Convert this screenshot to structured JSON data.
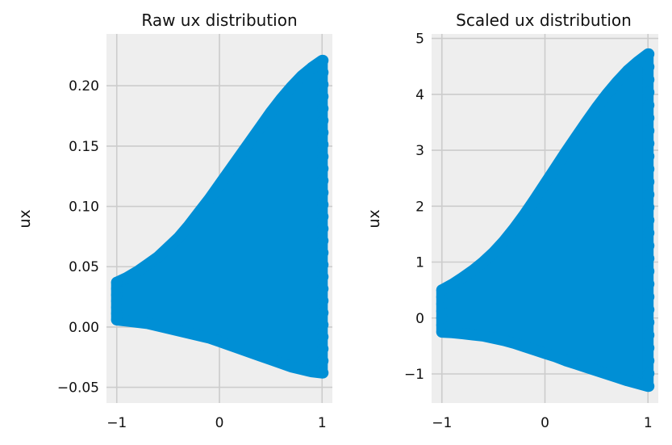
{
  "colors": {
    "background": "#eeeeee",
    "grid": "#cccccc",
    "marker": "#008fd5"
  },
  "chart_data": [
    {
      "type": "scatter",
      "title": "Raw ux distribution",
      "xlabel": "",
      "ylabel": "ux",
      "xlim": [
        -1.1,
        1.1
      ],
      "ylim": [
        -0.063,
        0.243
      ],
      "xticks": [
        -1,
        0,
        1
      ],
      "xtick_labels": [
        "−1",
        "0",
        "1"
      ],
      "yticks": [
        -0.05,
        0.0,
        0.05,
        0.1,
        0.15,
        0.2
      ],
      "ytick_labels": [
        "−0.05",
        "0.00",
        "0.05",
        "0.10",
        "0.15",
        "0.20"
      ],
      "grid": true,
      "legend": "none",
      "x": [
        -1.0,
        -0.9,
        -0.8,
        -0.7,
        -0.6,
        -0.5,
        -0.4,
        -0.3,
        -0.2,
        -0.1,
        0.0,
        0.1,
        0.2,
        0.3,
        0.4,
        0.5,
        0.6,
        0.7,
        0.8,
        0.9,
        1.0
      ],
      "upper": [
        0.037,
        0.041,
        0.046,
        0.052,
        0.058,
        0.066,
        0.074,
        0.084,
        0.095,
        0.106,
        0.118,
        0.13,
        0.142,
        0.154,
        0.166,
        0.178,
        0.189,
        0.199,
        0.208,
        0.215,
        0.221
      ],
      "lower": [
        0.006,
        0.005,
        0.004,
        0.003,
        0.001,
        -0.001,
        -0.003,
        -0.005,
        -0.007,
        -0.009,
        -0.012,
        -0.015,
        -0.018,
        -0.021,
        -0.024,
        -0.027,
        -0.03,
        -0.033,
        -0.035,
        -0.037,
        -0.038
      ]
    },
    {
      "type": "scatter",
      "title": "Scaled ux distribution",
      "xlabel": "",
      "ylabel": "ux",
      "xlim": [
        -1.1,
        1.1
      ],
      "ylim": [
        -1.52,
        5.08
      ],
      "xticks": [
        -1,
        0,
        1
      ],
      "xtick_labels": [
        "−1",
        "0",
        "1"
      ],
      "yticks": [
        -1,
        0,
        1,
        2,
        3,
        4,
        5
      ],
      "ytick_labels": [
        "−1",
        "0",
        "1",
        "2",
        "3",
        "4",
        "5"
      ],
      "grid": true,
      "legend": "none",
      "x": [
        -1.0,
        -0.9,
        -0.8,
        -0.7,
        -0.6,
        -0.5,
        -0.4,
        -0.3,
        -0.2,
        -0.1,
        0.0,
        0.1,
        0.2,
        0.3,
        0.4,
        0.5,
        0.6,
        0.7,
        0.8,
        0.9,
        1.0
      ],
      "upper": [
        0.5,
        0.6,
        0.72,
        0.85,
        1.0,
        1.17,
        1.37,
        1.6,
        1.85,
        2.12,
        2.4,
        2.68,
        2.96,
        3.23,
        3.5,
        3.76,
        4.0,
        4.22,
        4.42,
        4.58,
        4.72
      ],
      "lower": [
        -0.25,
        -0.26,
        -0.28,
        -0.3,
        -0.32,
        -0.36,
        -0.4,
        -0.45,
        -0.51,
        -0.57,
        -0.63,
        -0.69,
        -0.76,
        -0.82,
        -0.88,
        -0.94,
        -1.0,
        -1.06,
        -1.12,
        -1.17,
        -1.22
      ]
    }
  ]
}
